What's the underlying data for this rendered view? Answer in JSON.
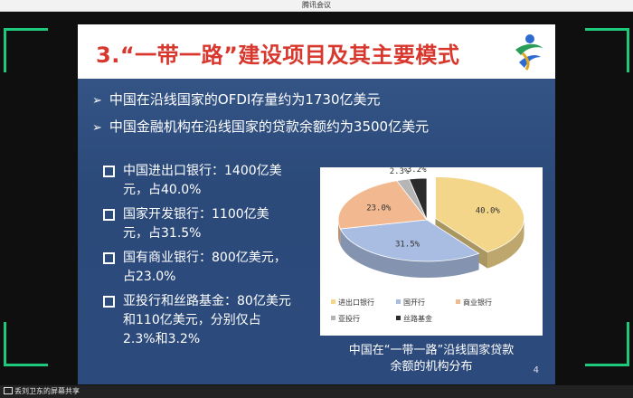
{
  "window": {
    "title": "腾讯会议"
  },
  "slide": {
    "title": "3.“一带一路”建设项目及其主要模式",
    "bullets": [
      "中国在沿线国家的OFDI存量约为1730亿美元",
      "中国金融机构在沿线国家的贷款余额约为3500亿美元"
    ],
    "sub_bullets": [
      "中国进出口银行：1400亿美元，占40.0%",
      "国家开发银行：1100亿美元，占31.5%",
      "国有商业银行：800亿美元，占23.0%",
      "亚投行和丝路基金：80亿美元和110亿美元，分别仅占2.3%和3.2%"
    ],
    "chart_caption_line1": "中国在“一带一路”沿线国家贷款",
    "chart_caption_line2": "余额的机构分布",
    "page_number": "4"
  },
  "chart_data": {
    "type": "pie",
    "categories": [
      "进出口银行",
      "国开行",
      "商业银行",
      "亚投行",
      "丝路基金"
    ],
    "values": [
      40.0,
      31.5,
      23.0,
      2.3,
      3.2
    ],
    "labels": [
      "40.0%",
      "31.5%",
      "23.0%",
      "2.3%",
      "3.2%"
    ],
    "colors": [
      "#f3d68a",
      "#a9bde2",
      "#f2b990",
      "#b5b5b5",
      "#2b2b2b"
    ],
    "legend_position": "bottom"
  },
  "statusbar": {
    "share_text": "丢刘卫东的屏幕共享"
  }
}
